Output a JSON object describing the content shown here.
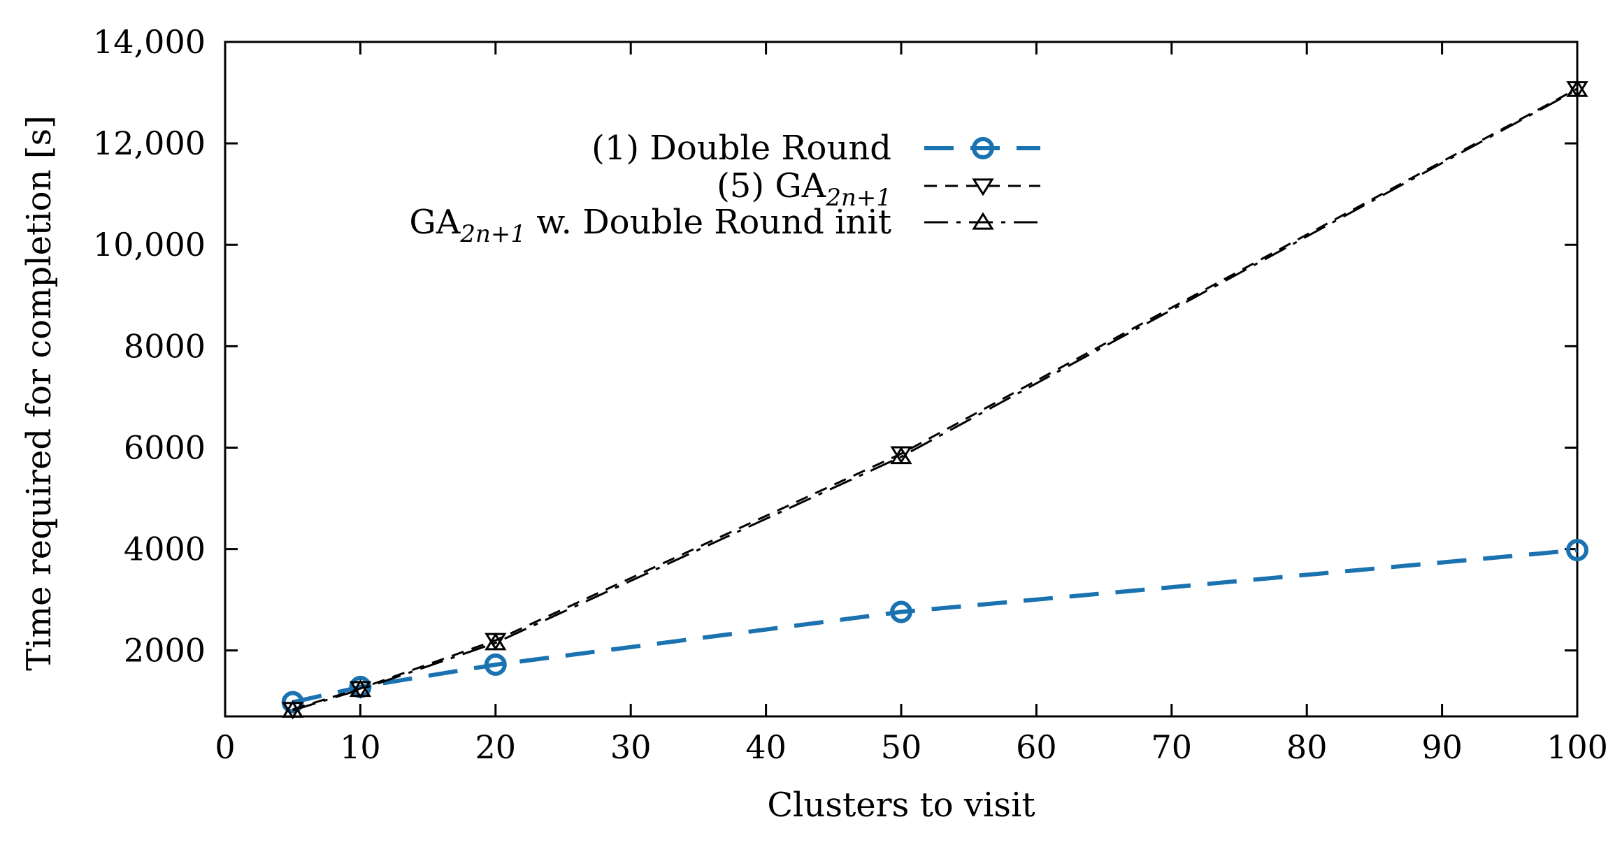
{
  "chart_data": {
    "type": "line",
    "title": "",
    "xlabel": "Clusters to visit",
    "ylabel": "Time required for completion [s]",
    "xlim": [
      0,
      100
    ],
    "ylim": [
      700,
      14000
    ],
    "xticks": [
      0,
      10,
      20,
      30,
      40,
      50,
      60,
      70,
      80,
      90,
      100
    ],
    "yticks": [
      2000,
      4000,
      6000,
      8000,
      10000,
      12000,
      14000
    ],
    "ytick_labels": [
      "2000",
      "4000",
      "6000",
      "8000",
      "10,000",
      "12,000",
      "14,000"
    ],
    "grid": false,
    "legend_position": "top-center",
    "series": [
      {
        "name": "(1) Double Round",
        "legend_main": "(1) Double Round",
        "legend_sub": "",
        "legend_tail": "",
        "color": "#1a73b0",
        "marker": "circle",
        "line": "dashed",
        "x": [
          5,
          10,
          20,
          50,
          100
        ],
        "y": [
          980,
          1280,
          1720,
          2760,
          3980
        ]
      },
      {
        "name": "(5) GA2n+1",
        "legend_main": "(5) GA",
        "legend_sub": "2n+1",
        "legend_tail": "",
        "color": "#000000",
        "marker": "triangle-down",
        "line": "short-dashed",
        "x": [
          5,
          10,
          20,
          50,
          100
        ],
        "y": [
          840,
          1250,
          2200,
          5880,
          13080
        ]
      },
      {
        "name": "GA2n+1 w. Double Round init",
        "legend_main": "GA",
        "legend_sub": "2n+1",
        "legend_tail": " w. Double Round init",
        "color": "#000000",
        "marker": "triangle-up",
        "line": "dash-dot",
        "x": [
          5,
          10,
          20,
          50,
          100
        ],
        "y": [
          820,
          1230,
          2150,
          5820,
          13060
        ]
      }
    ]
  }
}
